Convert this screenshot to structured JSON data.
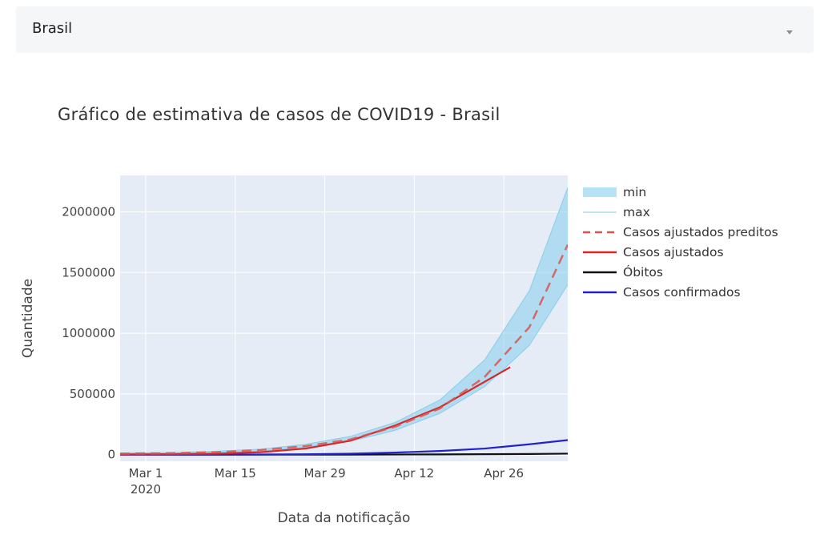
{
  "selector": {
    "value": "Brasil"
  },
  "chart_data": {
    "type": "line",
    "title": "Gráfico de estimativa de casos de COVID19 - Brasil",
    "xlabel": "Data da notificação",
    "ylabel": "Quantidade",
    "x_ticks": [
      {
        "date": "2020-03-01",
        "label": "Mar 1",
        "sub": "2020"
      },
      {
        "date": "2020-03-15",
        "label": "Mar 15",
        "sub": ""
      },
      {
        "date": "2020-03-29",
        "label": "Mar 29",
        "sub": ""
      },
      {
        "date": "2020-04-12",
        "label": "Apr 12",
        "sub": ""
      },
      {
        "date": "2020-04-26",
        "label": "Apr 26",
        "sub": ""
      }
    ],
    "y_ticks": [
      0,
      500000,
      1000000,
      1500000,
      2000000
    ],
    "xlim": [
      "2020-02-26",
      "2020-05-06"
    ],
    "ylim": [
      -55000,
      2300000
    ],
    "grid": true,
    "legend_position": "right",
    "series": [
      {
        "name": "min",
        "style": "band-lower",
        "color": "#87ceeb",
        "x": [
          "2020-02-26",
          "2020-03-05",
          "2020-03-12",
          "2020-03-19",
          "2020-03-26",
          "2020-04-02",
          "2020-04-09",
          "2020-04-16",
          "2020-04-23",
          "2020-04-30",
          "2020-05-06"
        ],
        "y": [
          5000,
          8000,
          15000,
          30000,
          60000,
          110000,
          200000,
          340000,
          560000,
          900000,
          1400000
        ]
      },
      {
        "name": "max",
        "style": "band-upper",
        "color": "#87ceeb",
        "x": [
          "2020-02-26",
          "2020-03-05",
          "2020-03-12",
          "2020-03-19",
          "2020-03-26",
          "2020-04-02",
          "2020-04-09",
          "2020-04-16",
          "2020-04-23",
          "2020-04-30",
          "2020-05-06"
        ],
        "y": [
          15000,
          18000,
          28000,
          45000,
          85000,
          150000,
          265000,
          450000,
          780000,
          1350000,
          2200000
        ]
      },
      {
        "name": "Casos ajustados preditos",
        "style": "dash",
        "color": "#d9534f",
        "x": [
          "2020-02-26",
          "2020-03-05",
          "2020-03-12",
          "2020-03-19",
          "2020-03-26",
          "2020-04-02",
          "2020-04-09",
          "2020-04-16",
          "2020-04-23",
          "2020-04-30",
          "2020-05-06"
        ],
        "y": [
          8000,
          12000,
          20000,
          38000,
          70000,
          125000,
          230000,
          380000,
          640000,
          1050000,
          1730000
        ]
      },
      {
        "name": "Casos ajustados",
        "style": "solid",
        "color": "#d62728",
        "x": [
          "2020-02-26",
          "2020-03-05",
          "2020-03-12",
          "2020-03-19",
          "2020-03-26",
          "2020-04-02",
          "2020-04-09",
          "2020-04-16",
          "2020-04-23",
          "2020-04-27"
        ],
        "y": [
          2000,
          4000,
          8000,
          20000,
          50000,
          115000,
          240000,
          390000,
          600000,
          720000
        ]
      },
      {
        "name": "Óbitos",
        "style": "solid",
        "color": "#111111",
        "x": [
          "2020-02-26",
          "2020-03-19",
          "2020-04-02",
          "2020-04-16",
          "2020-04-30",
          "2020-05-06"
        ],
        "y": [
          0,
          0,
          300,
          2000,
          5000,
          8000
        ]
      },
      {
        "name": "Casos confirmados",
        "style": "solid",
        "color": "#2222cc",
        "x": [
          "2020-02-26",
          "2020-03-12",
          "2020-03-19",
          "2020-03-26",
          "2020-04-02",
          "2020-04-09",
          "2020-04-16",
          "2020-04-23",
          "2020-04-30",
          "2020-05-06"
        ],
        "y": [
          0,
          100,
          1000,
          3000,
          8000,
          17000,
          30000,
          50000,
          85000,
          120000
        ]
      }
    ]
  }
}
